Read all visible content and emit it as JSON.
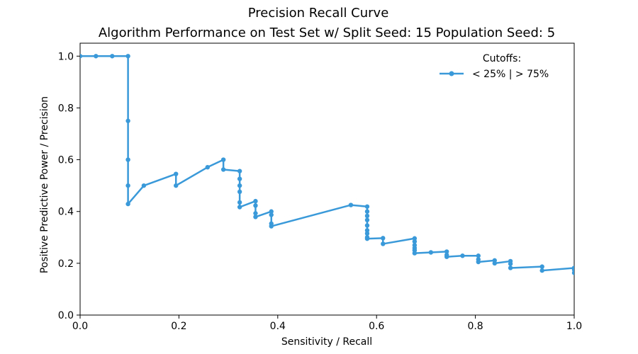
{
  "chart_data": {
    "type": "line",
    "title": "Precision Recall Curve",
    "subtitle": "Algorithm Performance on Test Set w/ Split Seed: 15 Population Seed: 5",
    "xlabel": "Sensitivity / Recall",
    "ylabel": "Positive Predictive Power / Precision",
    "xlim": [
      0,
      1
    ],
    "ylim": [
      0,
      1.05
    ],
    "xticks": [
      0.0,
      0.2,
      0.4,
      0.6,
      0.8,
      1.0
    ],
    "xtick_labels": [
      "0.0",
      "0.2",
      "0.4",
      "0.6",
      "0.8",
      "1.0"
    ],
    "yticks": [
      0.0,
      0.2,
      0.4,
      0.6,
      0.8,
      1.0
    ],
    "ytick_labels": [
      "0.0",
      "0.2",
      "0.4",
      "0.6",
      "0.8",
      "1.0"
    ],
    "grid": false,
    "legend": {
      "title": "Cutoffs:",
      "placement": "top-right"
    },
    "series": [
      {
        "name": "< 25% | > 75%",
        "color": "#3a9ad9",
        "x": [
          0.0,
          0.032,
          0.065,
          0.097,
          0.097,
          0.097,
          0.097,
          0.097,
          0.129,
          0.194,
          0.194,
          0.258,
          0.29,
          0.29,
          0.323,
          0.323,
          0.323,
          0.323,
          0.323,
          0.323,
          0.355,
          0.355,
          0.355,
          0.355,
          0.387,
          0.387,
          0.387,
          0.387,
          0.548,
          0.581,
          0.581,
          0.581,
          0.581,
          0.581,
          0.581,
          0.581,
          0.581,
          0.581,
          0.613,
          0.613,
          0.677,
          0.677,
          0.677,
          0.677,
          0.677,
          0.677,
          0.71,
          0.742,
          0.742,
          0.742,
          0.774,
          0.806,
          0.806,
          0.806,
          0.839,
          0.839,
          0.871,
          0.871,
          0.871,
          0.935,
          0.935,
          1.0,
          1.0,
          1.0
        ],
        "y": [
          1.0,
          1.0,
          1.0,
          1.0,
          0.75,
          0.6,
          0.5,
          0.429,
          0.5,
          0.545,
          0.5,
          0.571,
          0.6,
          0.562,
          0.556,
          0.526,
          0.5,
          0.476,
          0.435,
          0.417,
          0.44,
          0.423,
          0.393,
          0.379,
          0.4,
          0.387,
          0.353,
          0.343,
          0.425,
          0.419,
          0.4,
          0.383,
          0.367,
          0.346,
          0.327,
          0.315,
          0.3,
          0.295,
          0.297,
          0.275,
          0.296,
          0.284,
          0.27,
          0.259,
          0.25,
          0.239,
          0.242,
          0.245,
          0.232,
          0.225,
          0.229,
          0.229,
          0.215,
          0.205,
          0.211,
          0.2,
          0.208,
          0.198,
          0.182,
          0.187,
          0.172,
          0.182,
          0.175,
          0.163
        ]
      }
    ]
  }
}
